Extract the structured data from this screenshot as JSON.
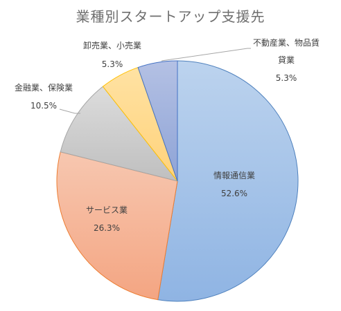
{
  "chart_data": {
    "type": "pie",
    "title": "業種別スタートアップ支援先",
    "slices": [
      {
        "name": "情報通信業",
        "value": 52.6,
        "label": "52.6%",
        "fill_start": "#bcd3ee",
        "fill_end": "#8fb4e3",
        "stroke": "#4f81bd"
      },
      {
        "name": "サービス業",
        "value": 26.3,
        "label": "26.3%",
        "fill_start": "#f7c7b0",
        "fill_end": "#f4a582",
        "stroke": "#ed7d31"
      },
      {
        "name": "金融業、保険業",
        "value": 10.5,
        "label": "10.5%",
        "fill_start": "#dcdcdc",
        "fill_end": "#bfbfbf",
        "stroke": "#a5a5a5"
      },
      {
        "name": "卸売業、小売業",
        "value": 5.3,
        "label": "5.3%",
        "fill_start": "#ffe2a3",
        "fill_end": "#ffd27a",
        "stroke": "#ffc000"
      },
      {
        "name": "不動産業、物品賃貸業",
        "name_lines": [
          "不動産業、物品賃",
          "貸業"
        ],
        "value": 5.3,
        "label": "5.3%",
        "fill_start": "#b4c1e4",
        "fill_end": "#8ea3d6",
        "stroke": "#4472c4"
      }
    ],
    "start_angle_deg": 0,
    "direction": "clockwise",
    "legend": "none"
  }
}
